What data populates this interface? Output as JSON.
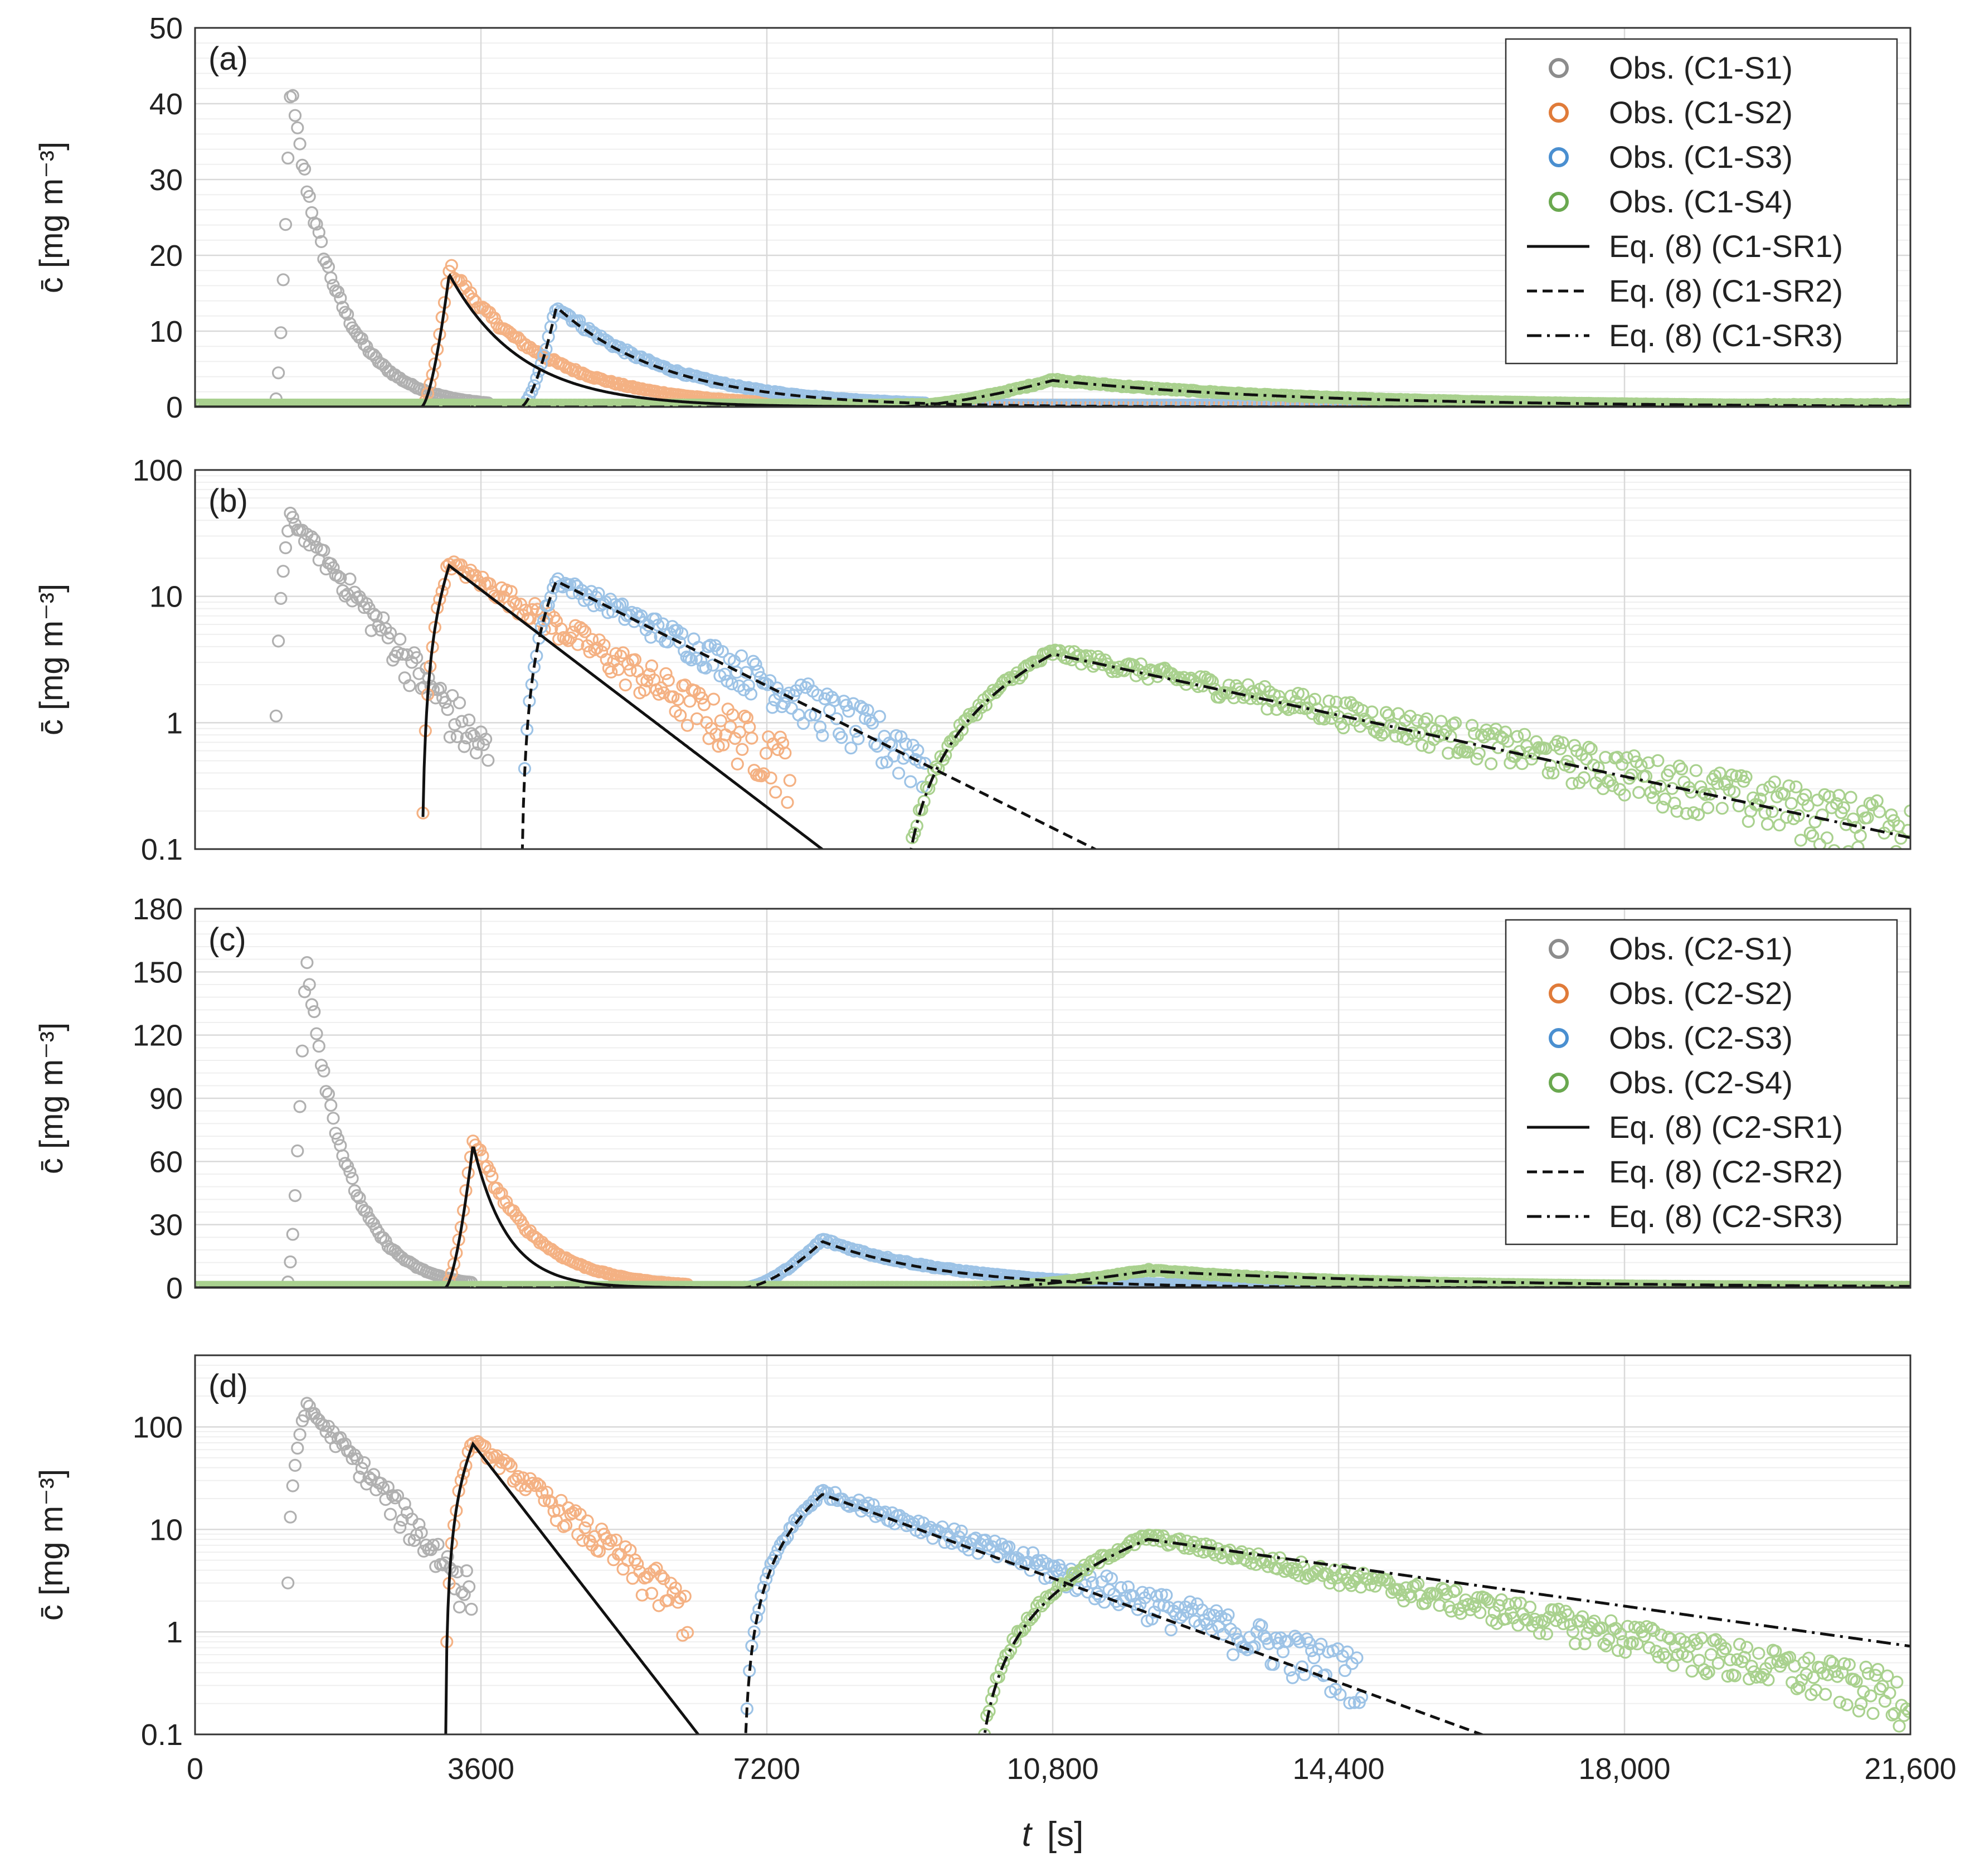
{
  "chart_data": [
    {
      "id": "a",
      "panel_label": "(a)",
      "type": "scatter",
      "yscale": "linear",
      "ylim": [
        0,
        50
      ],
      "yticks": [
        0,
        10,
        20,
        30,
        40,
        50
      ],
      "ylabel": "c̄  [mg m⁻³]",
      "xlim": [
        0,
        21600
      ],
      "grid": true,
      "legend_position": "top-right",
      "legend": [
        {
          "label": "Obs. (C1-S1)",
          "kind": "marker",
          "color": "#8c8c8c"
        },
        {
          "label": "Obs. (C1-S2)",
          "kind": "marker",
          "color": "#e07b39"
        },
        {
          "label": "Obs. (C1-S3)",
          "kind": "marker",
          "color": "#4a8fd0"
        },
        {
          "label": "Obs. (C1-S4)",
          "kind": "marker",
          "color": "#6aa84f"
        },
        {
          "label": "Eq. (8) (C1-SR1)",
          "kind": "line",
          "dash": "solid"
        },
        {
          "label": "Eq. (8) (C1-SR2)",
          "kind": "line",
          "dash": "dash"
        },
        {
          "label": "Eq. (8) (C1-SR3)",
          "kind": "line",
          "dash": "dashdot"
        }
      ],
      "observed": [
        {
          "name": "Obs. (C1-S1)",
          "color": "#b0b0b0",
          "t0": 1000,
          "tp": 1200,
          "cp": 42,
          "k": 0.00175,
          "tend": 3700
        },
        {
          "name": "Obs. (C1-S2)",
          "color": "#f4b183",
          "t0": 2850,
          "tp": 3200,
          "cp": 18.5,
          "k": 0.00085,
          "tend": 7500
        },
        {
          "name": "Obs. (C1-S3)",
          "color": "#9dc3e6",
          "t0": 4100,
          "tp": 4550,
          "cp": 13.5,
          "k": 0.0007,
          "tend": 9200
        },
        {
          "name": "Obs. (C1-S4)",
          "color": "#a9d18e",
          "t0": 8800,
          "tp": 10800,
          "cp": 3.6,
          "k": 0.0003,
          "tend": 21600
        }
      ],
      "model": [
        {
          "name": "Eq. (8) (C1-SR1)",
          "dash": "solid",
          "t0": 2850,
          "tp": 3200,
          "cp": 17.5,
          "k": 0.0011
        },
        {
          "name": "Eq. (8) (C1-SR2)",
          "dash": "dash",
          "t0": 4100,
          "tp": 4550,
          "cp": 13.2,
          "k": 0.00072
        },
        {
          "name": "Eq. (8) (C1-SR3)",
          "dash": "dashdot",
          "t0": 8800,
          "tp": 10800,
          "cp": 3.5,
          "k": 0.00031
        }
      ]
    },
    {
      "id": "b",
      "panel_label": "(b)",
      "type": "scatter",
      "yscale": "log",
      "ylim": [
        0.1,
        100
      ],
      "yticks": [
        0.1,
        1,
        10,
        100
      ],
      "ytick_labels": [
        "0.1",
        "1",
        "10",
        "100"
      ],
      "ylabel": "c̄  [mg m⁻³]",
      "xlim": [
        0,
        21600
      ],
      "grid": true,
      "observed": [
        {
          "name": "Obs. (C1-S1)",
          "color": "#b0b0b0",
          "t0": 1000,
          "tp": 1200,
          "cp": 42,
          "k": 0.00175,
          "tend": 3700
        },
        {
          "name": "Obs. (C1-S2)",
          "color": "#f4b183",
          "t0": 2850,
          "tp": 3200,
          "cp": 18.5,
          "k": 0.00085,
          "tend": 7500
        },
        {
          "name": "Obs. (C1-S3)",
          "color": "#9dc3e6",
          "t0": 4100,
          "tp": 4550,
          "cp": 13.5,
          "k": 0.0007,
          "tend": 9200
        },
        {
          "name": "Obs. (C1-S4)",
          "color": "#a9d18e",
          "t0": 8800,
          "tp": 10800,
          "cp": 3.6,
          "k": 0.0003,
          "tend": 21600
        }
      ],
      "model": [
        {
          "name": "Eq. (8) (C1-SR1)",
          "dash": "solid",
          "t0": 2850,
          "tp": 3200,
          "cp": 17.5,
          "k": 0.0011
        },
        {
          "name": "Eq. (8) (C1-SR2)",
          "dash": "dash",
          "t0": 4100,
          "tp": 4550,
          "cp": 13.2,
          "k": 0.00072
        },
        {
          "name": "Eq. (8) (C1-SR3)",
          "dash": "dashdot",
          "t0": 8800,
          "tp": 10800,
          "cp": 3.5,
          "k": 0.00031
        }
      ]
    },
    {
      "id": "c",
      "panel_label": "(c)",
      "type": "scatter",
      "yscale": "linear",
      "ylim": [
        0,
        180
      ],
      "yticks": [
        0,
        30,
        60,
        90,
        120,
        150,
        180
      ],
      "ylabel": "c̄  [mg m⁻³]",
      "xlim": [
        0,
        21600
      ],
      "grid": true,
      "legend_position": "top-right",
      "legend": [
        {
          "label": "Obs. (C2-S1)",
          "kind": "marker",
          "color": "#8c8c8c"
        },
        {
          "label": "Obs. (C2-S2)",
          "kind": "marker",
          "color": "#e07b39"
        },
        {
          "label": "Obs. (C2-S3)",
          "kind": "marker",
          "color": "#4a8fd0"
        },
        {
          "label": "Obs. (C2-S4)",
          "kind": "marker",
          "color": "#6aa84f"
        },
        {
          "label": "Eq. (8) (C2-SR1)",
          "kind": "line",
          "dash": "solid"
        },
        {
          "label": "Eq. (8) (C2-SR2)",
          "kind": "line",
          "dash": "dash"
        },
        {
          "label": "Eq. (8) (C2-SR3)",
          "kind": "line",
          "dash": "dashdot"
        }
      ],
      "observed": [
        {
          "name": "Obs. (C2-S1)",
          "color": "#b0b0b0",
          "t0": 1150,
          "tp": 1400,
          "cp": 160,
          "k": 0.002,
          "tend": 3500
        },
        {
          "name": "Obs. (C2-S2)",
          "color": "#f4b183",
          "t0": 3150,
          "tp": 3500,
          "cp": 72,
          "k": 0.0014,
          "tend": 6200
        },
        {
          "name": "Obs. (C2-S3)",
          "color": "#9dc3e6",
          "t0": 6900,
          "tp": 7900,
          "cp": 23,
          "k": 0.0006,
          "tend": 14700
        },
        {
          "name": "Obs. (C2-S4)",
          "color": "#a9d18e",
          "t0": 9800,
          "tp": 12000,
          "cp": 8.5,
          "k": 0.00037,
          "tend": 21600
        }
      ],
      "model": [
        {
          "name": "Eq. (8) (C2-SR1)",
          "dash": "solid",
          "t0": 3150,
          "tp": 3500,
          "cp": 68,
          "k": 0.0023
        },
        {
          "name": "Eq. (8) (C2-SR2)",
          "dash": "dash",
          "t0": 6900,
          "tp": 7900,
          "cp": 22,
          "k": 0.00065
        },
        {
          "name": "Eq. (8) (C2-SR3)",
          "dash": "dashdot",
          "t0": 9800,
          "tp": 12000,
          "cp": 8.0,
          "k": 0.00025
        }
      ]
    },
    {
      "id": "d",
      "panel_label": "(d)",
      "type": "scatter",
      "yscale": "log",
      "ylim": [
        0.1,
        500
      ],
      "yticks": [
        0.1,
        1,
        10,
        100
      ],
      "ytick_labels": [
        "0.1",
        "1",
        "10",
        "100"
      ],
      "ylabel": "c̄  [mg m⁻³]",
      "xlim": [
        0,
        21600
      ],
      "xticks": [
        0,
        3600,
        7200,
        10800,
        14400,
        18000,
        21600
      ],
      "xtick_labels": [
        "0",
        "3600",
        "7200",
        "10,800",
        "14,400",
        "18,000",
        "21,600"
      ],
      "xlabel_var": "t",
      "xlabel_unit": "[s]",
      "grid": true,
      "observed": [
        {
          "name": "Obs. (C2-S1)",
          "color": "#b0b0b0",
          "t0": 1150,
          "tp": 1400,
          "cp": 160,
          "k": 0.002,
          "tend": 3500
        },
        {
          "name": "Obs. (C2-S2)",
          "color": "#f4b183",
          "t0": 3150,
          "tp": 3500,
          "cp": 72,
          "k": 0.0014,
          "tend": 6200
        },
        {
          "name": "Obs. (C2-S3)",
          "color": "#9dc3e6",
          "t0": 6900,
          "tp": 7900,
          "cp": 23,
          "k": 0.0006,
          "tend": 14700
        },
        {
          "name": "Obs. (C2-S4)",
          "color": "#a9d18e",
          "t0": 9800,
          "tp": 12000,
          "cp": 8.5,
          "k": 0.00037,
          "tend": 21600
        }
      ],
      "model": [
        {
          "name": "Eq. (8) (C2-SR1)",
          "dash": "solid",
          "t0": 3150,
          "tp": 3500,
          "cp": 68,
          "k": 0.0023
        },
        {
          "name": "Eq. (8) (C2-SR2)",
          "dash": "dash",
          "t0": 6900,
          "tp": 7900,
          "cp": 22,
          "k": 0.00065
        },
        {
          "name": "Eq. (8) (C2-SR3)",
          "dash": "dashdot",
          "t0": 9800,
          "tp": 12000,
          "cp": 8.0,
          "k": 0.00025
        }
      ]
    }
  ]
}
